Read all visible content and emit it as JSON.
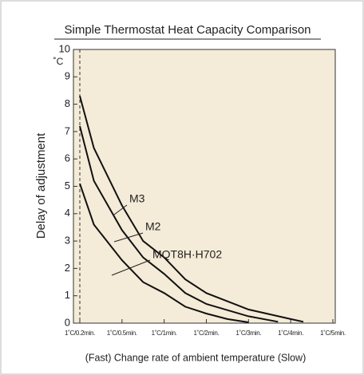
{
  "chart_data": {
    "type": "line",
    "title": "Simple Thermostat Heat Capacity Comparison",
    "y_label": "Delay of adjustment",
    "y_unit": "˚C",
    "x_label": "(Fast) Change rate of ambient temperature (Slow)",
    "ylim": [
      0,
      10
    ],
    "yticks": [
      0,
      1,
      2,
      3,
      4,
      5,
      6,
      7,
      8,
      9,
      10
    ],
    "xticks": [
      {
        "value": 0.2,
        "label": "1˚C/0.2min."
      },
      {
        "value": 0.5,
        "label": "1˚C/0.5min."
      },
      {
        "value": 1,
        "label": "1˚C/1min."
      },
      {
        "value": 2,
        "label": "1˚C/2min."
      },
      {
        "value": 3,
        "label": "1˚C/3min."
      },
      {
        "value": 4,
        "label": "1˚C/4min."
      },
      {
        "value": 5,
        "label": "1˚C/5min."
      }
    ],
    "background": "#f4ebd8",
    "series": [
      {
        "name": "M3",
        "color": "#111111",
        "x": [
          0.2,
          0.3,
          0.5,
          0.75,
          1,
          1.5,
          2,
          3,
          4,
          4.3
        ],
        "values": [
          8.3,
          6.4,
          4.3,
          3.0,
          2.4,
          1.6,
          1.1,
          0.5,
          0.15,
          0.05
        ]
      },
      {
        "name": "M2",
        "color": "#111111",
        "x": [
          0.2,
          0.3,
          0.5,
          0.75,
          1,
          1.5,
          2,
          3,
          3.7
        ],
        "values": [
          7.2,
          5.2,
          3.4,
          2.4,
          1.8,
          1.1,
          0.7,
          0.25,
          0.05
        ]
      },
      {
        "name": "MQT8H·H702",
        "color": "#111111",
        "x": [
          0.2,
          0.3,
          0.5,
          0.75,
          1,
          1.5,
          2,
          2.5,
          3
        ],
        "values": [
          5.1,
          3.6,
          2.3,
          1.5,
          1.1,
          0.6,
          0.35,
          0.15,
          0.03
        ]
      }
    ]
  }
}
